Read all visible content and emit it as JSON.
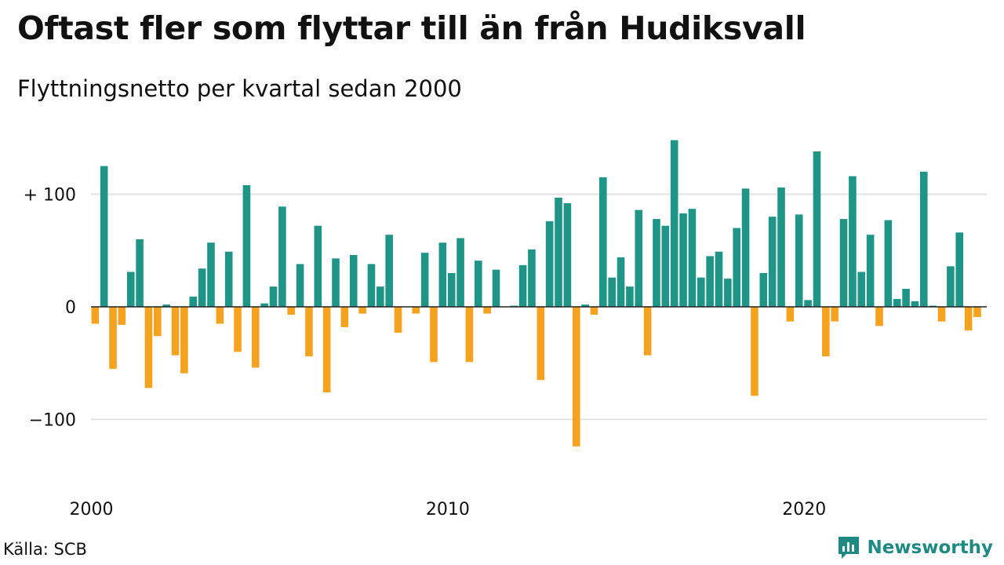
{
  "header": {
    "title": "Oftast fler som flyttar till än från Hudiksvall",
    "subtitle": "Flyttningsnetto per kvartal sedan 2000"
  },
  "footer": {
    "source": "Källa: SCB",
    "brand": "Newsworthy"
  },
  "colors": {
    "positive": "#1f9587",
    "negative": "#f5a21e",
    "grid": "#e2e2e2",
    "axis": "#222222",
    "brand": "#1f8a83"
  },
  "chart_data": {
    "type": "bar",
    "ylim": [
      -145,
      150
    ],
    "y_ticks": [
      {
        "value": 100,
        "label": "+ 100"
      },
      {
        "value": 0,
        "label": "0"
      },
      {
        "value": -100,
        "label": "−100"
      }
    ],
    "x_ticks": [
      {
        "year": 2000,
        "label": "2000"
      },
      {
        "year": 2010,
        "label": "2010"
      },
      {
        "year": 2020,
        "label": "2020"
      }
    ],
    "first_period": "2000Q1",
    "periods": 100,
    "grid": true,
    "values": [
      -15,
      125,
      -55,
      -16,
      31,
      60,
      -72,
      -26,
      2,
      -43,
      -59,
      9,
      34,
      57,
      -15,
      49,
      -40,
      108,
      -54,
      3,
      18,
      89,
      -7,
      38,
      -44,
      72,
      -76,
      43,
      -18,
      46,
      -6,
      38,
      18,
      64,
      -23,
      0,
      -6,
      48,
      -49,
      57,
      30,
      61,
      -49,
      41,
      -6,
      33,
      0,
      1,
      37,
      51,
      -65,
      76,
      97,
      92,
      -124,
      2,
      -7,
      115,
      26,
      44,
      18,
      86,
      -43,
      78,
      72,
      148,
      83,
      87,
      26,
      45,
      49,
      25,
      70,
      105,
      -79,
      30,
      80,
      106,
      -13,
      82,
      6,
      138,
      -44,
      -13,
      78,
      116,
      31,
      64,
      -17,
      77,
      7,
      16,
      5,
      120,
      1,
      -13,
      36,
      66,
      -21,
      -9
    ]
  }
}
